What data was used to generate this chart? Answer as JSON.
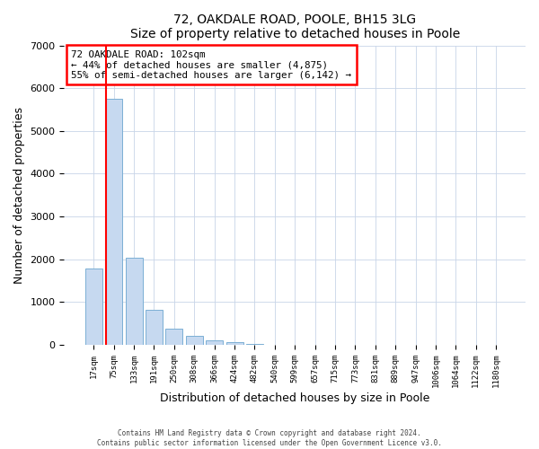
{
  "title": "72, OAKDALE ROAD, POOLE, BH15 3LG",
  "subtitle": "Size of property relative to detached houses in Poole",
  "xlabel": "Distribution of detached houses by size in Poole",
  "ylabel": "Number of detached properties",
  "bar_labels": [
    "17sqm",
    "75sqm",
    "133sqm",
    "191sqm",
    "250sqm",
    "308sqm",
    "366sqm",
    "424sqm",
    "482sqm",
    "540sqm",
    "599sqm",
    "657sqm",
    "715sqm",
    "773sqm",
    "831sqm",
    "889sqm",
    "947sqm",
    "1006sqm",
    "1064sqm",
    "1122sqm",
    "1180sqm"
  ],
  "bar_values": [
    1780,
    5750,
    2040,
    820,
    370,
    220,
    105,
    60,
    25,
    5,
    5,
    0,
    0,
    0,
    0,
    0,
    0,
    0,
    0,
    0,
    0
  ],
  "bar_color": "#c6d9f0",
  "bar_edge_color": "#7bafd4",
  "vline_x": 0.62,
  "vline_color": "red",
  "annotation_text": "72 OAKDALE ROAD: 102sqm\n← 44% of detached houses are smaller (4,875)\n55% of semi-detached houses are larger (6,142) →",
  "annotation_box_color": "white",
  "annotation_box_edge_color": "red",
  "ylim": [
    0,
    7000
  ],
  "yticks": [
    0,
    1000,
    2000,
    3000,
    4000,
    5000,
    6000,
    7000
  ],
  "footer_line1": "Contains HM Land Registry data © Crown copyright and database right 2024.",
  "footer_line2": "Contains public sector information licensed under the Open Government Licence v3.0.",
  "background_color": "#ffffff",
  "plot_bg_color": "#ffffff",
  "grid_color": "#c8d4e8"
}
